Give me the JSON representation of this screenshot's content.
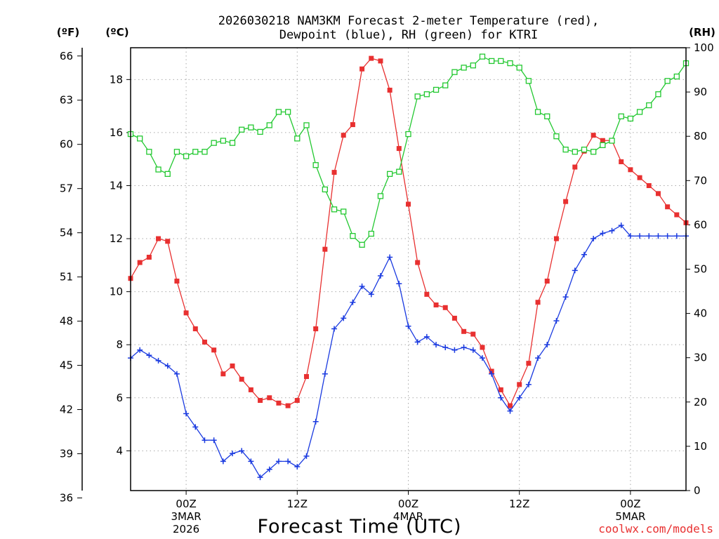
{
  "chart_data": {
    "type": "line",
    "title_line1": "2026030218 NAM3KM Forecast 2-meter Temperature (red),",
    "title_line2": "Dewpoint (blue), RH (green) for KTRI",
    "xlabel": "Forecast Time (UTC)",
    "credit": "coolwx.com/models",
    "left_unit_f": "(ºF)",
    "left_unit_c": "(ºC)",
    "right_unit": "(RH)",
    "x_range_hours": [
      0,
      60
    ],
    "celsius_range": [
      2.5,
      19.2
    ],
    "rh_range": [
      0,
      100
    ],
    "f_ticks": [
      "36",
      "39",
      "42",
      "45",
      "48",
      "51",
      "54",
      "57",
      "60",
      "63",
      "66"
    ],
    "c_ticks": [
      "4",
      "6",
      "8",
      "10",
      "12",
      "14",
      "16",
      "18"
    ],
    "rh_ticks": [
      "0",
      "10",
      "20",
      "30",
      "40",
      "50",
      "60",
      "70",
      "80",
      "90",
      "100"
    ],
    "x_ticks": [
      {
        "hour": 6,
        "line1": "00Z",
        "line2": "3MAR",
        "line3": "2026"
      },
      {
        "hour": 18,
        "line1": "12Z",
        "line2": "",
        "line3": ""
      },
      {
        "hour": 30,
        "line1": "00Z",
        "line2": "4MAR",
        "line3": ""
      },
      {
        "hour": 42,
        "line1": "12Z",
        "line2": "",
        "line3": ""
      },
      {
        "hour": 54,
        "line1": "00Z",
        "line2": "5MAR",
        "line3": ""
      }
    ],
    "series": [
      {
        "name": "Temperature (°C)",
        "color": "#e83030",
        "marker": "filled-square",
        "axis": "celsius",
        "values": [
          10.5,
          11.1,
          11.3,
          12.0,
          11.9,
          10.4,
          9.2,
          8.6,
          8.1,
          7.8,
          6.9,
          7.2,
          6.7,
          6.3,
          5.9,
          6.0,
          5.8,
          5.7,
          5.9,
          6.8,
          8.6,
          11.6,
          14.5,
          15.9,
          16.3,
          18.4,
          18.8,
          18.7,
          17.6,
          15.4,
          13.3,
          11.1,
          9.9,
          9.5,
          9.4,
          9.0,
          8.5,
          8.4,
          7.9,
          7.0,
          6.3,
          5.7,
          6.5,
          7.3,
          9.6,
          10.4,
          12.0,
          13.4,
          14.7,
          15.3,
          15.9,
          15.7,
          15.7,
          14.9,
          14.6,
          14.3,
          14.0,
          13.7,
          13.2,
          12.9,
          12.6
        ]
      },
      {
        "name": "Dewpoint (°C)",
        "color": "#1a3ae0",
        "marker": "plus",
        "axis": "celsius",
        "values": [
          7.5,
          7.8,
          7.6,
          7.4,
          7.2,
          6.9,
          5.4,
          4.9,
          4.4,
          4.4,
          3.6,
          3.9,
          4.0,
          3.6,
          3.0,
          3.3,
          3.6,
          3.6,
          3.4,
          3.8,
          5.1,
          6.9,
          8.6,
          9.0,
          9.6,
          10.2,
          9.9,
          10.6,
          11.3,
          10.3,
          8.7,
          8.1,
          8.3,
          8.0,
          7.9,
          7.8,
          7.9,
          7.8,
          7.5,
          6.9,
          6.0,
          5.5,
          6.0,
          6.5,
          7.5,
          8.0,
          8.9,
          9.8,
          10.8,
          11.4,
          12.0,
          12.2,
          12.3,
          12.5,
          12.1,
          12.1,
          12.1,
          12.1,
          12.1,
          12.1,
          12.1
        ]
      },
      {
        "name": "RH (%)",
        "color": "#22c830",
        "marker": "open-square",
        "axis": "rh",
        "values": [
          80.5,
          79.5,
          76.5,
          72.5,
          71.5,
          76.5,
          75.5,
          76.5,
          76.5,
          78.5,
          79.0,
          78.5,
          81.5,
          82.0,
          81.0,
          82.5,
          85.5,
          85.5,
          79.5,
          82.5,
          73.5,
          68.0,
          63.5,
          63.0,
          57.5,
          55.5,
          58.0,
          66.5,
          71.5,
          72.0,
          80.5,
          89.0,
          89.5,
          90.5,
          91.5,
          94.5,
          95.5,
          96.0,
          98.0,
          97.0,
          97.0,
          96.5,
          95.5,
          92.5,
          85.5,
          84.5,
          80.0,
          77.0,
          76.5,
          77.0,
          76.5,
          78.0,
          79.0,
          84.5,
          84.0,
          85.5,
          87.0,
          89.5,
          92.5,
          93.5,
          96.5
        ]
      }
    ]
  }
}
